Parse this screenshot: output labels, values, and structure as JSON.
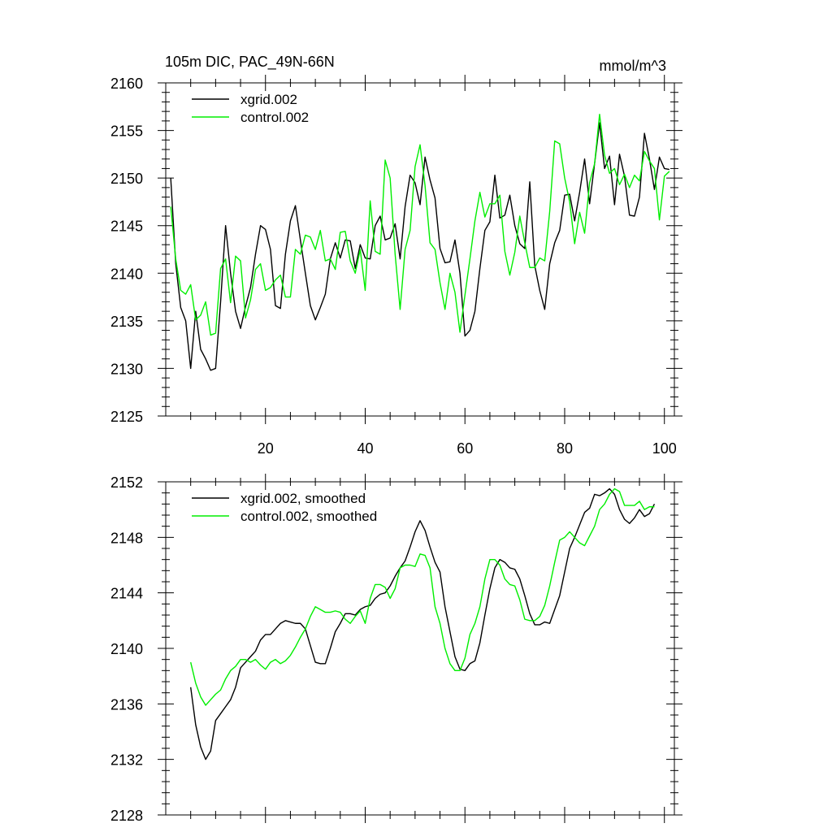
{
  "chart_data": [
    {
      "type": "line",
      "title": "105m DIC, PAC_49N-66N",
      "units": "mmol/m^3",
      "xlabel": "",
      "ylabel": "",
      "xlim": [
        0,
        102
      ],
      "ylim": [
        2125,
        2160
      ],
      "xticks": [
        20,
        40,
        60,
        80,
        100
      ],
      "yticks": [
        2125,
        2130,
        2135,
        2140,
        2145,
        2150,
        2155,
        2160
      ],
      "legend_position": "top-left",
      "series": [
        {
          "name": "xgrid.002",
          "color": "#000000",
          "x": [
            1,
            2,
            3,
            4,
            5,
            6,
            7,
            8,
            9,
            10,
            11,
            12,
            13,
            14,
            15,
            16,
            17,
            18,
            19,
            20,
            21,
            22,
            23,
            24,
            25,
            26,
            27,
            28,
            29,
            30,
            31,
            32,
            33,
            34,
            35,
            36,
            37,
            38,
            39,
            40,
            41,
            42,
            43,
            44,
            45,
            46,
            47,
            48,
            49,
            50,
            51,
            52,
            53,
            54,
            55,
            56,
            57,
            58,
            59,
            60,
            61,
            62,
            63,
            64,
            65,
            66,
            67,
            68,
            69,
            70,
            71,
            72,
            73,
            74,
            75,
            76,
            77,
            78,
            79,
            80,
            81,
            82,
            83,
            84,
            85,
            86,
            87,
            88,
            89,
            90,
            91,
            92,
            93,
            94,
            95,
            96,
            97,
            98,
            99,
            100,
            101
          ],
          "values": [
            2150,
            2141,
            2136.4,
            2135,
            2130,
            2136,
            2132,
            2131,
            2129.8,
            2130,
            2137,
            2145,
            2140,
            2136,
            2134.2,
            2136.5,
            2138.5,
            2142,
            2145,
            2144.6,
            2142.5,
            2136.6,
            2136.3,
            2142,
            2145.5,
            2147.1,
            2143.5,
            2140,
            2136.6,
            2135.1,
            2136.4,
            2137.8,
            2141.5,
            2143.2,
            2141.6,
            2143.5,
            2143.4,
            2140.5,
            2143,
            2141.6,
            2141.5,
            2145,
            2146,
            2143.5,
            2143.7,
            2145.2,
            2141.5,
            2147,
            2150.3,
            2149.5,
            2147.2,
            2152.2,
            2149.8,
            2147.9,
            2142.6,
            2141.1,
            2141.2,
            2143.5,
            2140,
            2133.4,
            2134,
            2136,
            2140.5,
            2144.5,
            2145.4,
            2150.3,
            2145.8,
            2146.1,
            2148.2,
            2145,
            2143.1,
            2142.6,
            2149.6,
            2140.8,
            2138.2,
            2136.2,
            2141,
            2143.2,
            2144.5,
            2148.2,
            2148.3,
            2145.5,
            2148.5,
            2152,
            2147.3,
            2151.5,
            2155.8,
            2151,
            2152.3,
            2147.2,
            2152.5,
            2150.2,
            2146.1,
            2146,
            2148,
            2154.7,
            2152,
            2148.8,
            2152.2,
            2151,
            2150.9
          ]
        },
        {
          "name": "control.002",
          "color": "#00ee00",
          "x": [
            1,
            2,
            3,
            4,
            5,
            6,
            7,
            8,
            9,
            10,
            11,
            12,
            13,
            14,
            15,
            16,
            17,
            18,
            19,
            20,
            21,
            22,
            23,
            24,
            25,
            26,
            27,
            28,
            29,
            30,
            31,
            32,
            33,
            34,
            35,
            36,
            37,
            38,
            39,
            40,
            41,
            42,
            43,
            44,
            45,
            46,
            47,
            48,
            49,
            50,
            51,
            52,
            53,
            54,
            55,
            56,
            57,
            58,
            59,
            60,
            61,
            62,
            63,
            64,
            65,
            66,
            67,
            68,
            69,
            70,
            71,
            72,
            73,
            74,
            75,
            76,
            77,
            78,
            79,
            80,
            81,
            82,
            83,
            84,
            85,
            86,
            87,
            88,
            89,
            90,
            91,
            92,
            93,
            94,
            95,
            96,
            97,
            98,
            99,
            100,
            101
          ],
          "values": [
            2147,
            2141.5,
            2138.2,
            2137.8,
            2138.8,
            2135.1,
            2135.6,
            2137,
            2133.5,
            2133.7,
            2140.5,
            2141.5,
            2136.9,
            2141.8,
            2141.3,
            2135.3,
            2137.2,
            2140.4,
            2141,
            2138.2,
            2138.5,
            2139.3,
            2139.8,
            2137.5,
            2137.5,
            2142.5,
            2142,
            2144,
            2143.8,
            2142.5,
            2144.5,
            2141.3,
            2141.5,
            2140.4,
            2144.3,
            2144.4,
            2141.3,
            2140,
            2142.5,
            2138.2,
            2147.6,
            2142.3,
            2142,
            2151.9,
            2150,
            2142,
            2136.2,
            2142.5,
            2144.5,
            2151.2,
            2153.5,
            2149.2,
            2143.2,
            2142.5,
            2139,
            2136.2,
            2140,
            2138,
            2133.8,
            2137.7,
            2141.5,
            2145.5,
            2148.5,
            2145.9,
            2147.3,
            2147.3,
            2148.2,
            2142.3,
            2139.8,
            2142.2,
            2146,
            2143.2,
            2140.6,
            2140.6,
            2141.6,
            2141.3,
            2146.5,
            2153.9,
            2153.6,
            2150,
            2147.5,
            2143.1,
            2146.4,
            2144.2,
            2149.5,
            2151.5,
            2156.7,
            2152.4,
            2150.5,
            2151,
            2149.3,
            2150.4,
            2149,
            2150.3,
            2149.7,
            2152.8,
            2151.8,
            2151,
            2145.6,
            2150.2,
            2150.7
          ]
        }
      ]
    },
    {
      "type": "line",
      "title": "",
      "xlabel": "",
      "ylabel": "",
      "xlim": [
        0,
        102
      ],
      "ylim": [
        2128,
        2152
      ],
      "xticks": [
        20,
        40,
        60,
        80,
        100
      ],
      "yticks": [
        2128,
        2132,
        2136,
        2140,
        2144,
        2148,
        2152
      ],
      "legend_position": "top-left",
      "series": [
        {
          "name": "xgrid.002, smoothed",
          "color": "#000000",
          "x": [
            5,
            6,
            7,
            8,
            9,
            10,
            11,
            12,
            13,
            14,
            15,
            16,
            17,
            18,
            19,
            20,
            21,
            22,
            23,
            24,
            25,
            26,
            27,
            28,
            29,
            30,
            31,
            32,
            33,
            34,
            35,
            36,
            37,
            38,
            39,
            40,
            41,
            42,
            43,
            44,
            45,
            46,
            47,
            48,
            49,
            50,
            51,
            52,
            53,
            54,
            55,
            56,
            57,
            58,
            59,
            60,
            61,
            62,
            63,
            64,
            65,
            66,
            67,
            68,
            69,
            70,
            71,
            72,
            73,
            74,
            75,
            76,
            77,
            78,
            79,
            80,
            81,
            82,
            83,
            84,
            85,
            86,
            87,
            88,
            89,
            90,
            91,
            92,
            93,
            94,
            95,
            96,
            97,
            98
          ],
          "values": [
            2137.2,
            2134.5,
            2132.9,
            2132,
            2132.6,
            2134.8,
            2135.3,
            2135.8,
            2136.3,
            2137.2,
            2138.6,
            2139,
            2139.4,
            2139.8,
            2140.6,
            2141,
            2141,
            2141.4,
            2141.8,
            2142,
            2141.9,
            2141.8,
            2141.8,
            2141.4,
            2140.2,
            2139,
            2138.9,
            2138.9,
            2140,
            2141.2,
            2141.8,
            2142.5,
            2142.5,
            2142.4,
            2142.8,
            2143,
            2143.1,
            2143.6,
            2143.9,
            2144,
            2144.5,
            2145.2,
            2145.8,
            2146.3,
            2147.3,
            2148.4,
            2149.2,
            2148.5,
            2147.3,
            2146.2,
            2145.5,
            2143,
            2141.2,
            2139.4,
            2138.5,
            2138.4,
            2138.9,
            2139.1,
            2140.4,
            2142.4,
            2144.3,
            2145.8,
            2146.4,
            2146.2,
            2145.8,
            2145.7,
            2145,
            2143.8,
            2142.5,
            2141.7,
            2141.7,
            2141.9,
            2141.8,
            2142.8,
            2143.8,
            2145.5,
            2147.2,
            2148,
            2148.9,
            2149.8,
            2150.1,
            2151.1,
            2151,
            2151.2,
            2151.5,
            2151.1,
            2150,
            2149.3,
            2149,
            2149.4,
            2150,
            2149.5,
            2149.7,
            2150.4
          ]
        },
        {
          "name": "control.002, smoothed",
          "color": "#00ee00",
          "x": [
            5,
            6,
            7,
            8,
            9,
            10,
            11,
            12,
            13,
            14,
            15,
            16,
            17,
            18,
            19,
            20,
            21,
            22,
            23,
            24,
            25,
            26,
            27,
            28,
            29,
            30,
            31,
            32,
            33,
            34,
            35,
            36,
            37,
            38,
            39,
            40,
            41,
            42,
            43,
            44,
            45,
            46,
            47,
            48,
            49,
            50,
            51,
            52,
            53,
            54,
            55,
            56,
            57,
            58,
            59,
            60,
            61,
            62,
            63,
            64,
            65,
            66,
            67,
            68,
            69,
            70,
            71,
            72,
            73,
            74,
            75,
            76,
            77,
            78,
            79,
            80,
            81,
            82,
            83,
            84,
            85,
            86,
            87,
            88,
            89,
            90,
            91,
            92,
            93,
            94,
            95,
            96,
            97,
            98
          ],
          "values": [
            2139,
            2137.5,
            2136.5,
            2135.9,
            2136.3,
            2136.7,
            2137,
            2137.8,
            2138.4,
            2138.7,
            2139.2,
            2139.2,
            2139,
            2139.2,
            2138.8,
            2138.5,
            2139,
            2139.2,
            2138.9,
            2139.1,
            2139.5,
            2140.1,
            2140.8,
            2141.4,
            2142.3,
            2143,
            2142.8,
            2142.6,
            2142.6,
            2142.7,
            2142.6,
            2142.1,
            2141.8,
            2142.3,
            2142.7,
            2141.8,
            2143.6,
            2144.6,
            2144.6,
            2144.4,
            2143.6,
            2144.3,
            2145.8,
            2146,
            2146,
            2145.9,
            2146.8,
            2146.7,
            2145.8,
            2143,
            2141.8,
            2140,
            2138.9,
            2138.4,
            2138.4,
            2139.3,
            2141,
            2141.8,
            2143,
            2145,
            2146.4,
            2146.4,
            2146,
            2145,
            2144.6,
            2144.5,
            2143.5,
            2142.1,
            2142,
            2142,
            2142.3,
            2143.1,
            2144.5,
            2146.2,
            2147.8,
            2148,
            2148.4,
            2148,
            2147.6,
            2147.4,
            2148.1,
            2148.8,
            2150,
            2150.4,
            2151.1,
            2151.5,
            2151.3,
            2150.3,
            2150.3,
            2150.3,
            2150.6,
            2150,
            2150.2,
            2150.2
          ]
        }
      ]
    }
  ]
}
